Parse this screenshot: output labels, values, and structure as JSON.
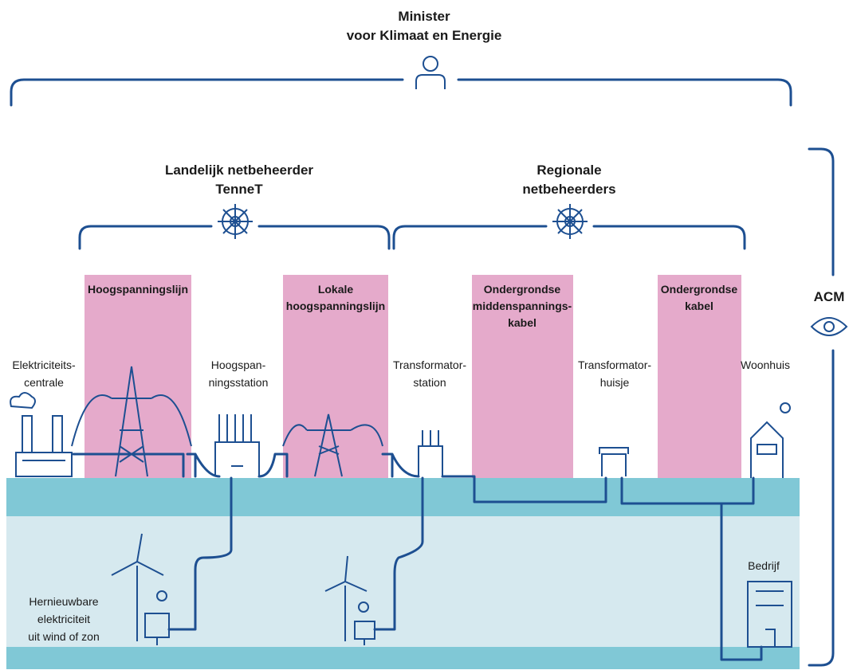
{
  "minister": {
    "lines": [
      "Minister",
      "voor Klimaat en Energie"
    ]
  },
  "operators": [
    {
      "lines": [
        "Landelijk netbeheerder",
        "TenneT"
      ]
    },
    {
      "lines": [
        "Regionale",
        "netbeheerders"
      ]
    }
  ],
  "supervisor": "ACM",
  "cables": [
    {
      "lines": [
        "Hoogspanningslijn"
      ]
    },
    {
      "lines": [
        "Lokale",
        "hoogspanningslijn"
      ]
    },
    {
      "lines": [
        "Ondergrondse",
        "middenspannings-",
        "kabel"
      ]
    },
    {
      "lines": [
        "Ondergrondse",
        "kabel"
      ]
    }
  ],
  "nodes": [
    {
      "lines": [
        "Elektriciteits-",
        "centrale"
      ]
    },
    {
      "lines": [
        "Hoogspan-",
        "ningsstation"
      ]
    },
    {
      "lines": [
        "Transformator-",
        "station"
      ]
    },
    {
      "lines": [
        "Transformator-",
        "huisje"
      ]
    },
    {
      "lines": [
        "Woonhuis"
      ]
    },
    {
      "lines": [
        "Bedrijf"
      ]
    },
    {
      "lines": [
        "Hernieuwbare",
        "elektriciteit",
        "uit wind of zon"
      ]
    }
  ]
}
